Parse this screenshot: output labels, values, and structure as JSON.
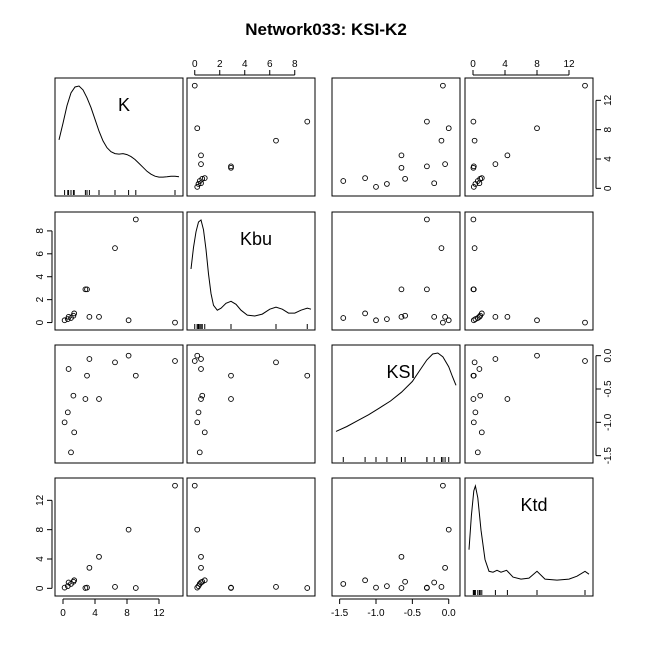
{
  "chart_data": {
    "type": "scatter",
    "title": "Network033: KSI-K2",
    "variables": [
      "K",
      "Kbu",
      "KSI",
      "Ktd"
    ],
    "ranges": {
      "K": [
        -0.5,
        14.5
      ],
      "Kbu": [
        -0.3,
        9.3
      ],
      "KSI": [
        -1.55,
        0.1
      ],
      "Ktd": [
        -0.5,
        14.5
      ]
    },
    "ticks": {
      "K": [
        0,
        4,
        8,
        12
      ],
      "Kbu": [
        0,
        2,
        4,
        6,
        8
      ],
      "KSI": [
        -1.5,
        -1.0,
        -0.5,
        0.0
      ],
      "Ktd": [
        0,
        4,
        8,
        12
      ]
    },
    "tick_labels": {
      "K": [
        "0",
        "4",
        "8",
        "12"
      ],
      "Kbu": [
        "0",
        "2",
        "4",
        "6",
        "8"
      ],
      "KSI": [
        "-1.5",
        "-1.0",
        "-0.5",
        "0.0"
      ],
      "Ktd": [
        "0",
        "4",
        "8",
        "12"
      ]
    },
    "points": [
      {
        "K": 0.2,
        "Kbu": 0.2,
        "KSI": -1.0,
        "Ktd": 0.1
      },
      {
        "K": 0.6,
        "Kbu": 0.3,
        "KSI": -0.85,
        "Ktd": 0.3
      },
      {
        "K": 1.0,
        "Kbu": 0.4,
        "KSI": -1.45,
        "Ktd": 0.6
      },
      {
        "K": 1.3,
        "Kbu": 0.6,
        "KSI": -0.6,
        "Ktd": 0.9
      },
      {
        "K": 1.4,
        "Kbu": 0.8,
        "KSI": -1.15,
        "Ktd": 1.1
      },
      {
        "K": 0.7,
        "Kbu": 0.5,
        "KSI": -0.2,
        "Ktd": 0.8
      },
      {
        "K": 2.8,
        "Kbu": 2.9,
        "KSI": -0.65,
        "Ktd": 0.05
      },
      {
        "K": 3.0,
        "Kbu": 2.9,
        "KSI": -0.3,
        "Ktd": 0.1
      },
      {
        "K": 3.3,
        "Kbu": 0.5,
        "KSI": -0.05,
        "Ktd": 2.8
      },
      {
        "K": 4.5,
        "Kbu": 0.5,
        "KSI": -0.65,
        "Ktd": 4.3
      },
      {
        "K": 6.5,
        "Kbu": 6.5,
        "KSI": -0.1,
        "Ktd": 0.2
      },
      {
        "K": 8.2,
        "Kbu": 0.2,
        "KSI": 0.0,
        "Ktd": 8.0
      },
      {
        "K": 9.1,
        "Kbu": 9.0,
        "KSI": -0.3,
        "Ktd": 0.05
      },
      {
        "K": 14.0,
        "Kbu": 0.0,
        "KSI": -0.08,
        "Ktd": 14.0
      }
    ],
    "density": {
      "K": [
        [
          -0.5,
          0.45
        ],
        [
          0,
          0.62
        ],
        [
          0.5,
          0.8
        ],
        [
          1,
          0.93
        ],
        [
          1.5,
          0.99
        ],
        [
          2,
          1.0
        ],
        [
          2.5,
          0.96
        ],
        [
          3,
          0.88
        ],
        [
          3.5,
          0.78
        ],
        [
          4,
          0.66
        ],
        [
          4.5,
          0.54
        ],
        [
          5,
          0.44
        ],
        [
          5.5,
          0.37
        ],
        [
          6,
          0.33
        ],
        [
          6.5,
          0.31
        ],
        [
          7,
          0.305
        ],
        [
          7.5,
          0.31
        ],
        [
          8,
          0.3
        ],
        [
          8.5,
          0.28
        ],
        [
          9,
          0.25
        ],
        [
          9.5,
          0.21
        ],
        [
          10,
          0.17
        ],
        [
          10.5,
          0.13
        ],
        [
          11,
          0.1
        ],
        [
          11.5,
          0.08
        ],
        [
          12,
          0.07
        ],
        [
          12.5,
          0.07
        ],
        [
          13,
          0.075
        ],
        [
          13.5,
          0.08
        ],
        [
          14,
          0.08
        ],
        [
          14.5,
          0.075
        ]
      ],
      "Kbu": [
        [
          -0.3,
          0.5
        ],
        [
          -0.1,
          0.72
        ],
        [
          0.1,
          0.88
        ],
        [
          0.3,
          0.98
        ],
        [
          0.5,
          1.0
        ],
        [
          0.7,
          0.9
        ],
        [
          0.9,
          0.7
        ],
        [
          1.1,
          0.45
        ],
        [
          1.3,
          0.25
        ],
        [
          1.5,
          0.13
        ],
        [
          1.8,
          0.08
        ],
        [
          2.1,
          0.1
        ],
        [
          2.5,
          0.15
        ],
        [
          2.9,
          0.17
        ],
        [
          3.3,
          0.14
        ],
        [
          3.7,
          0.08
        ],
        [
          4.2,
          0.03
        ],
        [
          4.8,
          0.02
        ],
        [
          5.4,
          0.04
        ],
        [
          6.0,
          0.09
        ],
        [
          6.5,
          0.11
        ],
        [
          7.0,
          0.09
        ],
        [
          7.5,
          0.05
        ],
        [
          8.0,
          0.05
        ],
        [
          8.5,
          0.08
        ],
        [
          9.0,
          0.1
        ],
        [
          9.3,
          0.09
        ]
      ],
      "KSI": [
        [
          -1.55,
          0.2
        ],
        [
          -1.4,
          0.25
        ],
        [
          -1.25,
          0.31
        ],
        [
          -1.1,
          0.37
        ],
        [
          -0.95,
          0.44
        ],
        [
          -0.8,
          0.51
        ],
        [
          -0.65,
          0.6
        ],
        [
          -0.5,
          0.71
        ],
        [
          -0.4,
          0.82
        ],
        [
          -0.3,
          0.93
        ],
        [
          -0.22,
          0.99
        ],
        [
          -0.15,
          1.0
        ],
        [
          -0.08,
          0.96
        ],
        [
          0.0,
          0.86
        ],
        [
          0.05,
          0.76
        ],
        [
          0.1,
          0.67
        ]
      ],
      "Ktd": [
        [
          -0.5,
          0.35
        ],
        [
          -0.2,
          0.7
        ],
        [
          0.1,
          0.95
        ],
        [
          0.3,
          1.0
        ],
        [
          0.6,
          0.88
        ],
        [
          1.0,
          0.55
        ],
        [
          1.5,
          0.25
        ],
        [
          2.0,
          0.13
        ],
        [
          2.5,
          0.12
        ],
        [
          3.0,
          0.14
        ],
        [
          3.5,
          0.12
        ],
        [
          4.2,
          0.14
        ],
        [
          5.0,
          0.07
        ],
        [
          6.0,
          0.05
        ],
        [
          7.0,
          0.06
        ],
        [
          8.0,
          0.13
        ],
        [
          9.0,
          0.05
        ],
        [
          10.5,
          0.04
        ],
        [
          12.0,
          0.05
        ],
        [
          13.0,
          0.08
        ],
        [
          14.0,
          0.13
        ],
        [
          14.5,
          0.1
        ]
      ]
    }
  }
}
